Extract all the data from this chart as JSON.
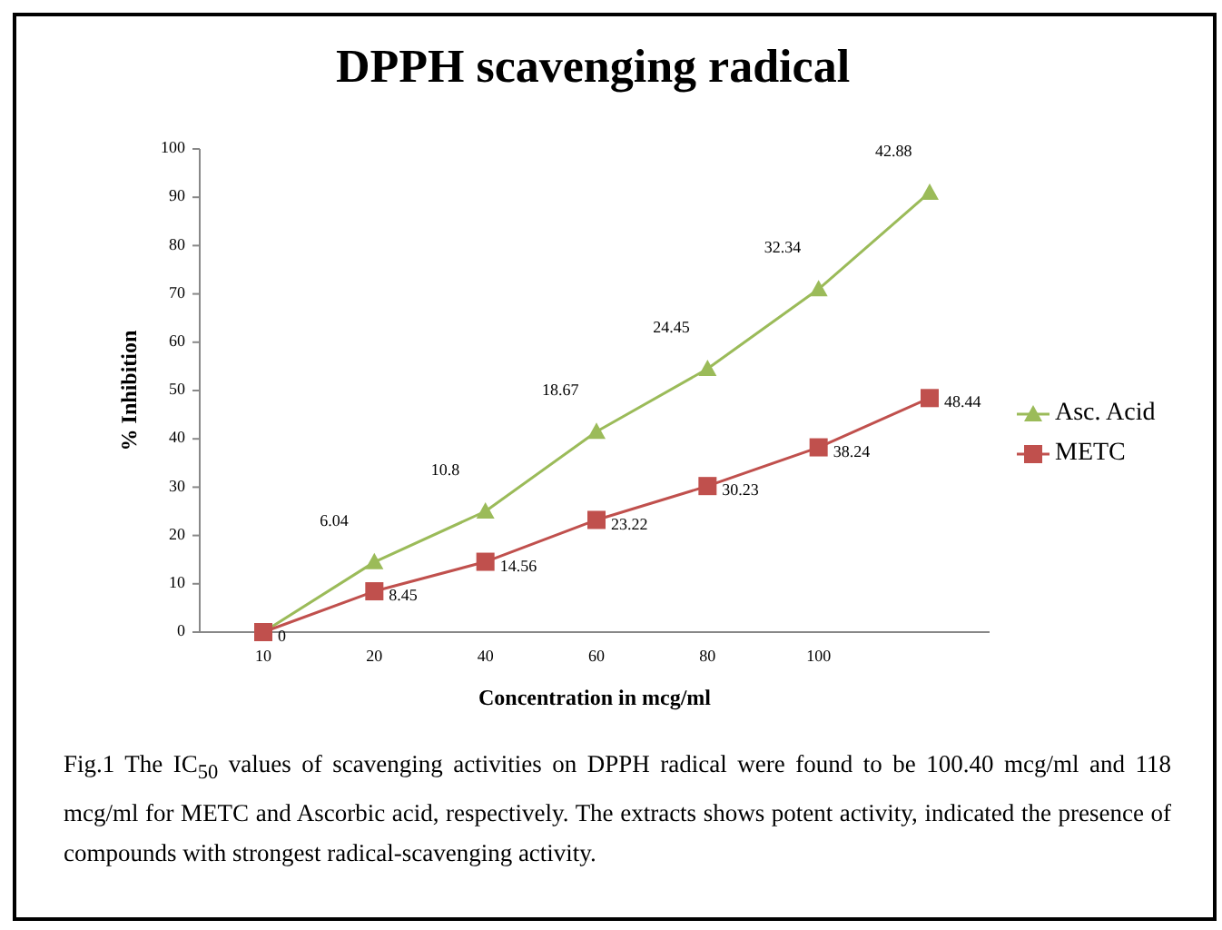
{
  "chart_data": {
    "type": "line",
    "title": "DPPH scavenging radical",
    "xlabel": "Concentration in mcg/ml",
    "ylabel": "% Inhibition",
    "categories": [
      "10",
      "20",
      "40",
      "60",
      "80",
      "100",
      null
    ],
    "series": [
      {
        "name": "Asc. Acid",
        "color": "#9bbb59",
        "marker": "triangle",
        "values": [
          0,
          14.5,
          25,
          41.5,
          54.5,
          71,
          91
        ]
      },
      {
        "name": "METC",
        "color": "#c0504d",
        "marker": "square",
        "values": [
          0,
          8.45,
          14.56,
          23.22,
          30.23,
          38.24,
          48.44
        ],
        "value_labels": [
          "0",
          "8.45",
          "14.56",
          "23.22",
          "30.23",
          "38.24",
          "48.44"
        ]
      }
    ],
    "ylim": [
      0,
      100
    ],
    "yticks": [
      0,
      10,
      20,
      30,
      40,
      50,
      60,
      70,
      80,
      90,
      100
    ],
    "grid": false,
    "legend": "right",
    "annotations": [
      {
        "text": "6.04",
        "x": "20",
        "y": 14.5
      },
      {
        "text": "10.8",
        "x": "40",
        "y": 25
      },
      {
        "text": "18.67",
        "x": "60",
        "y": 41.5
      },
      {
        "text": "24.45",
        "x": "80",
        "y": 54.5
      },
      {
        "text": "32.34",
        "x": "100",
        "y": 71
      },
      "42.88",
      "Fig.1 The IC$_{50}$ values of scavenging activities on DPPH radical were found to be 100.40 mcg/ml and 118 mcg/ml for METC and Ascorbic acid, respectively. The extracts shows potent activity, indicated the presence of compounds with strongest radical-scavenging activity."
    ]
  }
}
